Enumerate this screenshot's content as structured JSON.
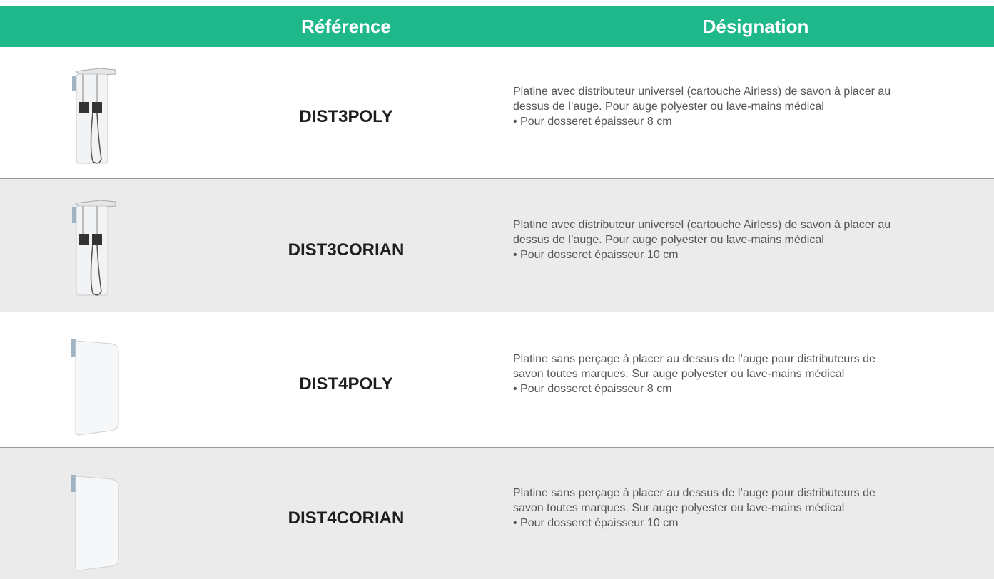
{
  "table": {
    "columns": [
      "Référence",
      "Désignation"
    ],
    "rows": [
      {
        "reference": "DIST3POLY",
        "designation": [
          "Platine avec distributeur universel (cartouche Airless) de savon à placer au",
          "dessus de l’auge. Pour auge polyester ou lave-mains médical",
          "• Pour dosseret épaisseur 8 cm"
        ]
      },
      {
        "reference": "DIST3CORIAN",
        "designation": [
          "Platine avec distributeur universel (cartouche Airless) de savon à placer au",
          "dessus de l’auge. Pour auge polyester ou lave-mains médical",
          "• Pour dosseret épaisseur 10 cm"
        ]
      },
      {
        "reference": "DIST4POLY",
        "designation": [
          "Platine sans perçage à placer au dessus de l’auge pour distributeurs de",
          "savon toutes marques. Sur auge polyester ou lave-mains médical",
          "• Pour dosseret épaisseur 8 cm"
        ]
      },
      {
        "reference": "DIST4CORIAN",
        "designation": [
          "Platine sans perçage à placer au dessus de l’auge pour distributeurs de",
          "savon toutes marques. Sur auge polyester ou lave-mains médical",
          "• Pour dosseret épaisseur 10 cm"
        ]
      }
    ]
  }
}
